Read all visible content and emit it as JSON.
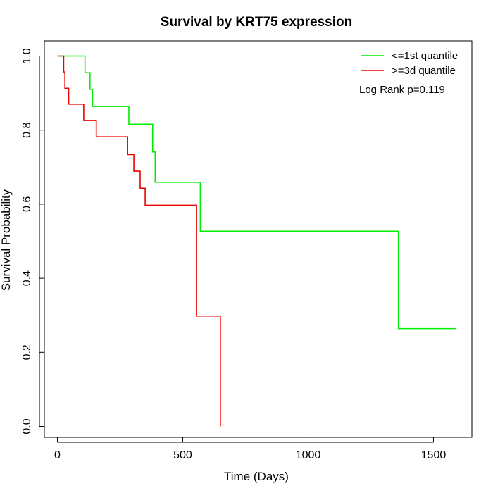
{
  "chart_data": {
    "type": "line",
    "title": "Survival by KRT75 expression",
    "xlabel": "Time (Days)",
    "ylabel": "Survival Probability",
    "xlim": [
      0,
      1600
    ],
    "ylim": [
      0,
      1
    ],
    "x_ticks": [
      0,
      500,
      1000,
      1500
    ],
    "x_tick_labels": [
      "0",
      "500",
      "1000",
      "1500"
    ],
    "y_ticks": [
      0,
      0.2,
      0.4,
      0.6,
      0.8,
      1.0
    ],
    "y_tick_labels": [
      "0.0",
      "0.2",
      "0.4",
      "0.6",
      "0.8",
      "1.0"
    ],
    "grid": false,
    "legend_position": "top-right",
    "annotation": "Log Rank p=0.119",
    "series": [
      {
        "name": "<=1st quantile",
        "color": "#00ee00",
        "step": true,
        "x": [
          0,
          110,
          130,
          140,
          285,
          380,
          390,
          570,
          1360,
          1590
        ],
        "y": [
          1.0,
          0.955,
          0.91,
          0.864,
          0.816,
          0.741,
          0.659,
          0.527,
          0.264,
          0.264
        ]
      },
      {
        "name": ">=3d quantile",
        "color": "#ee0000",
        "step": true,
        "x": [
          0,
          25,
          30,
          45,
          105,
          155,
          280,
          305,
          330,
          350,
          555,
          650,
          650
        ],
        "y": [
          1.0,
          0.957,
          0.913,
          0.87,
          0.826,
          0.782,
          0.734,
          0.689,
          0.643,
          0.597,
          0.298,
          0.298,
          0.0
        ]
      }
    ]
  }
}
